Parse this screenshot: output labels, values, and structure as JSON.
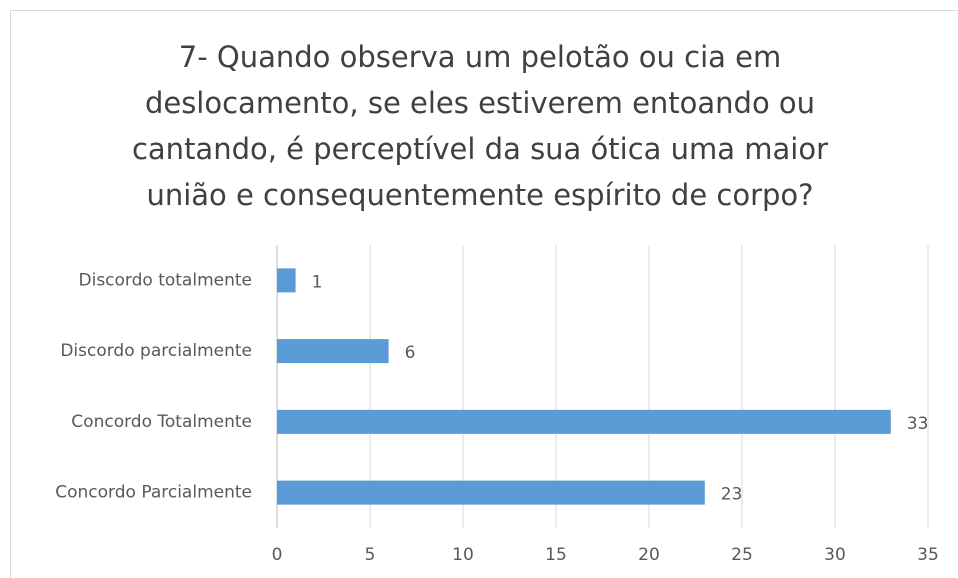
{
  "chart_data": {
    "type": "bar",
    "orientation": "horizontal",
    "title": "7- Quando observa um pelotão ou cia em deslocamento, se eles estiverem entoando ou cantando, é perceptível da sua ótica uma maior união e consequentemente espírito de corpo?",
    "categories": [
      "Discordo totalmente",
      "Discordo parcialmente",
      "Concordo Totalmente",
      "Concordo Parcialmente"
    ],
    "values": [
      1,
      6,
      33,
      23
    ],
    "color": "#5b9bd5",
    "xlim": [
      0,
      35
    ],
    "xticks": [
      0,
      5,
      10,
      15,
      20,
      25,
      30,
      35
    ],
    "grid": true
  }
}
